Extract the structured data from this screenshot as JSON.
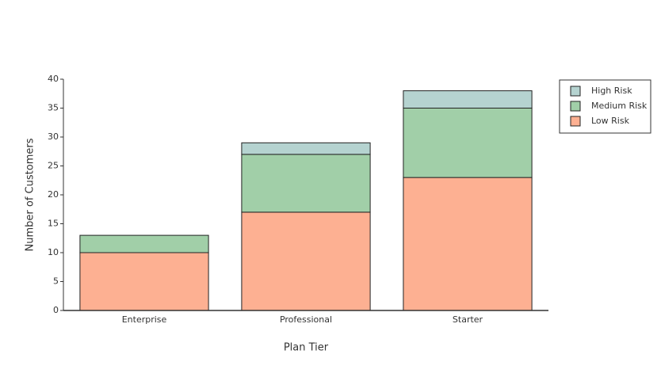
{
  "chart_data": {
    "type": "stacked_bar",
    "x_label": "Plan Tier",
    "y_label": "Number of Customers",
    "categories": [
      "Enterprise",
      "Professional",
      "Starter"
    ],
    "series": [
      {
        "name": "Low Risk",
        "color": "#fdb092",
        "values": [
          10,
          17,
          23
        ]
      },
      {
        "name": "Medium Risk",
        "color": "#a1cfa8",
        "values": [
          3,
          10,
          12
        ]
      },
      {
        "name": "High Risk",
        "color": "#b5d3d0",
        "values": [
          0,
          2,
          3
        ]
      }
    ],
    "ylim": [
      0,
      40
    ],
    "yticks": [
      0,
      5,
      10,
      15,
      20,
      25,
      30,
      35,
      40
    ],
    "legend": "upper right"
  }
}
